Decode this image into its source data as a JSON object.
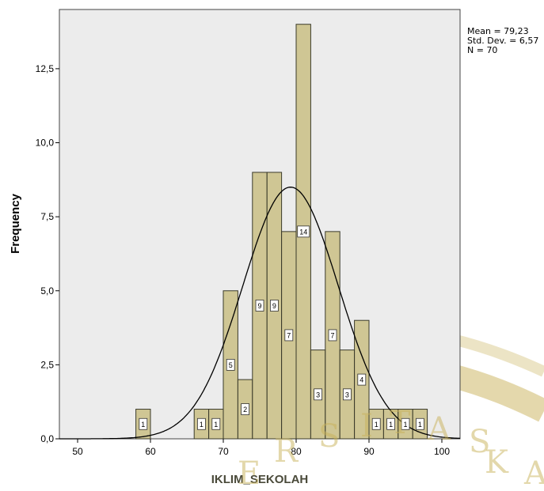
{
  "chart_data": {
    "type": "bar",
    "xlabel": "IKLIM_SEKOLAH",
    "ylabel": "Frequency",
    "xlim": [
      47.5,
      102.5
    ],
    "ylim": [
      0,
      14.5
    ],
    "x_ticks": [
      50,
      60,
      70,
      80,
      90,
      100
    ],
    "y_ticks": [
      0,
      2.5,
      5,
      7.5,
      10,
      12.5
    ],
    "x_tick_labels": [
      "50",
      "60",
      "70",
      "80",
      "90",
      "100"
    ],
    "y_tick_labels": [
      "0,0",
      "2,5",
      "5,0",
      "7,5",
      "10,0",
      "12,5"
    ],
    "bins": [
      {
        "x": 59,
        "value": 1,
        "label": "1"
      },
      {
        "x": 67,
        "value": 1,
        "label": "1"
      },
      {
        "x": 69,
        "value": 1,
        "label": "1"
      },
      {
        "x": 71,
        "value": 5,
        "label": "5"
      },
      {
        "x": 73,
        "value": 2,
        "label": "2"
      },
      {
        "x": 75,
        "value": 9,
        "label": "9"
      },
      {
        "x": 77,
        "value": 9,
        "label": "9"
      },
      {
        "x": 79,
        "value": 7,
        "label": "7"
      },
      {
        "x": 81,
        "value": 14,
        "label": "14"
      },
      {
        "x": 83,
        "value": 3,
        "label": "3"
      },
      {
        "x": 85,
        "value": 7,
        "label": "7"
      },
      {
        "x": 87,
        "value": 3,
        "label": "3"
      },
      {
        "x": 89,
        "value": 4,
        "label": "4"
      },
      {
        "x": 91,
        "value": 1,
        "label": "1"
      },
      {
        "x": 93,
        "value": 1,
        "label": "1"
      },
      {
        "x": 95,
        "value": 1,
        "label": "1"
      },
      {
        "x": 97,
        "value": 1,
        "label": "1"
      }
    ],
    "bin_width": 2,
    "normal_curve": {
      "mean": 79.23,
      "sd": 6.57,
      "n": 70
    },
    "grid": false,
    "legend": "none"
  },
  "stats": {
    "mean": "Mean = 79,23",
    "std_dev": "Std. Dev. = 6,57",
    "n": "N = 70"
  },
  "watermark": {
    "text": "ERSITAS KA"
  },
  "colors": {
    "plot_bg": "#ececec",
    "plot_bg_lower": "#f3f3f3",
    "bar_fill": "#c8bd7e",
    "bar_stroke": "#3a3a2a",
    "curve": "#000000",
    "watermark": "#c9b25a"
  }
}
